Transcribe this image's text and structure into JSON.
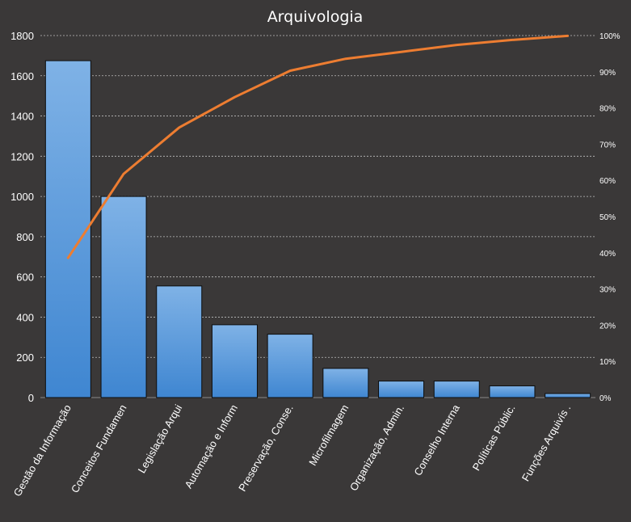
{
  "chart_data": {
    "type": "bar",
    "title": "Arquivologia",
    "categories": [
      "Gestão da Informação",
      "Conceitos Fundamen",
      "Legislação Arqui",
      "Automação e Inform",
      "Preservação, Conse.",
      "Microfilmagem",
      "Organização, Admin.",
      "Conselho Interna",
      "Políticas Públic.",
      "Funções Arquivís ."
    ],
    "series": [
      {
        "values": [
          1675,
          1000,
          555,
          362,
          315,
          145,
          82,
          82,
          58,
          20
        ],
        "color": "#4a90d9"
      },
      {
        "type": "line",
        "axis": "secondary",
        "values": [
          38.6,
          61.8,
          74.6,
          83.0,
          90.3,
          93.6,
          95.5,
          97.4,
          98.8,
          99.9
        ],
        "color": "#ed7d31"
      }
    ],
    "ylim": [
      0,
      1800
    ],
    "yticks": [
      "0",
      "200",
      "400",
      "600",
      "800",
      "1000",
      "1200",
      "1400",
      "1600",
      "1800"
    ],
    "y2lim": [
      0,
      100
    ],
    "y2ticks": [
      "0%",
      "10%",
      "20%",
      "30%",
      "40%",
      "50%",
      "60%",
      "70%",
      "80%",
      "90%",
      "100%"
    ],
    "grid": true,
    "legend": "none"
  },
  "colors": {
    "background": "#3a3838",
    "text": "#ffffff",
    "grid": "#bfbfbf",
    "bar": "#4a90d9",
    "line": "#ed7d31"
  }
}
